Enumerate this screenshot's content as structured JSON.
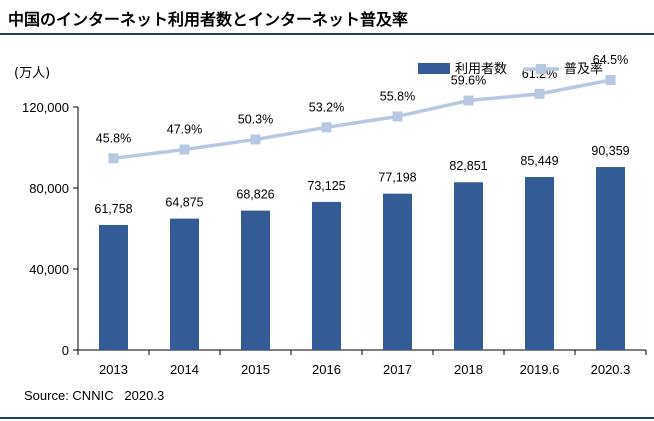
{
  "title": "中国のインターネット利用者数とインターネット普及率",
  "unit_label": "(万人)",
  "source": "Source: CNNIC   2020.3",
  "colors": {
    "bar": "#335c96",
    "line": "#b7c9e2",
    "rule": "#1f3e79"
  },
  "chart_data": {
    "type": "bar",
    "categories": [
      "2013",
      "2014",
      "2015",
      "2016",
      "2017",
      "2018",
      "2019.6",
      "2020.3"
    ],
    "series": [
      {
        "name": "利用者数",
        "type": "bar",
        "values": [
          61758,
          64875,
          68826,
          73125,
          77198,
          82851,
          85449,
          90359
        ],
        "labels": [
          "61,758",
          "64,875",
          "68,826",
          "73,125",
          "77,198",
          "82,851",
          "85,449",
          "90,359"
        ]
      },
      {
        "name": "普及率",
        "type": "line",
        "values": [
          45.8,
          47.9,
          50.3,
          53.2,
          55.8,
          59.6,
          61.2,
          64.5
        ],
        "labels": [
          "45.8%",
          "47.9%",
          "50.3%",
          "53.2%",
          "55.8%",
          "59.6%",
          "61.2%",
          "64.5%"
        ]
      }
    ],
    "y_ticks": [
      "0",
      "40,000",
      "80,000",
      "120,000"
    ],
    "y_tick_values": [
      0,
      40000,
      80000,
      120000
    ],
    "ylim": [
      0,
      120000
    ],
    "y2lim": [
      0,
      70
    ],
    "legend_position": "top-right",
    "grid": false
  }
}
